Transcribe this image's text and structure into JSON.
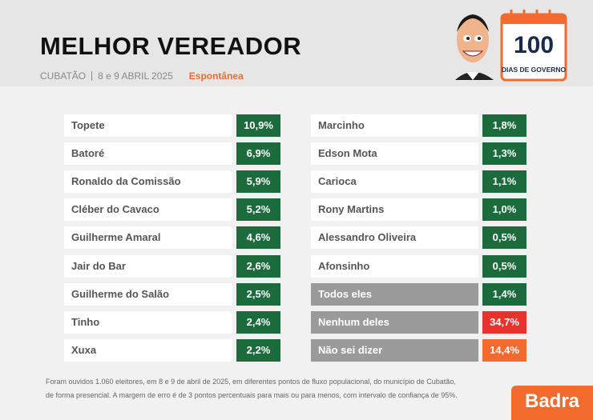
{
  "header": {
    "title": "MELHOR VEREADOR",
    "location": "CUBATÃO",
    "dates": "8 e 9 ABRIL 2025",
    "method": "Espontânea",
    "badge_number": "100",
    "badge_text": "DIAS DE GOVERNO"
  },
  "table": {
    "columns": [
      [
        {
          "name": "Topete",
          "value": "10,9%",
          "color": "#1c6b3c",
          "name_bg": "#ffffff"
        },
        {
          "name": "Batoré",
          "value": "6,9%",
          "color": "#1c6b3c",
          "name_bg": "#ffffff"
        },
        {
          "name": "Ronaldo da Comissão",
          "value": "5,9%",
          "color": "#1c6b3c",
          "name_bg": "#ffffff"
        },
        {
          "name": "Cléber do Cavaco",
          "value": "5,2%",
          "color": "#1c6b3c",
          "name_bg": "#ffffff"
        },
        {
          "name": "Guilherme Amaral",
          "value": "4,6%",
          "color": "#1c6b3c",
          "name_bg": "#ffffff"
        },
        {
          "name": "Jair do Bar",
          "value": "2,6%",
          "color": "#1c6b3c",
          "name_bg": "#ffffff"
        },
        {
          "name": "Guilherme do Salão",
          "value": "2,5%",
          "color": "#1c6b3c",
          "name_bg": "#ffffff"
        },
        {
          "name": "Tinho",
          "value": "2,4%",
          "color": "#1c6b3c",
          "name_bg": "#ffffff"
        },
        {
          "name": "Xuxa",
          "value": "2,2%",
          "color": "#1c6b3c",
          "name_bg": "#ffffff"
        }
      ],
      [
        {
          "name": "Marcinho",
          "value": "1,8%",
          "color": "#1c6b3c",
          "name_bg": "#ffffff"
        },
        {
          "name": "Edson Mota",
          "value": "1,3%",
          "color": "#1c6b3c",
          "name_bg": "#ffffff"
        },
        {
          "name": "Carioca",
          "value": "1,1%",
          "color": "#1c6b3c",
          "name_bg": "#ffffff"
        },
        {
          "name": "Rony Martins",
          "value": "1,0%",
          "color": "#1c6b3c",
          "name_bg": "#ffffff"
        },
        {
          "name": "Alessandro Oliveira",
          "value": "0,5%",
          "color": "#1c6b3c",
          "name_bg": "#ffffff"
        },
        {
          "name": "Afonsinho",
          "value": "0,5%",
          "color": "#1c6b3c",
          "name_bg": "#ffffff"
        },
        {
          "name": "Todos eles",
          "value": "1,4%",
          "color": "#1c6b3c",
          "name_bg": "#9a9a9a"
        },
        {
          "name": "Nenhum deles",
          "value": "34,7%",
          "color": "#e8322c",
          "name_bg": "#9a9a9a"
        },
        {
          "name": "Não sei dizer",
          "value": "14,4%",
          "color": "#f26a2e",
          "name_bg": "#9a9a9a"
        }
      ]
    ]
  },
  "footer": {
    "note_line1": "Foram ouvidos 1.060 eleitores, em 8 e 9 de abril de 2025, em diferentes pontos de fluxo populacional, do município de Cubatão,",
    "note_line2": "de forma presencial. A margem de erro é de 3 pontos percentuais para mais ou para menos, com intervalo de confiança de 95%.",
    "brand": "Badra"
  }
}
